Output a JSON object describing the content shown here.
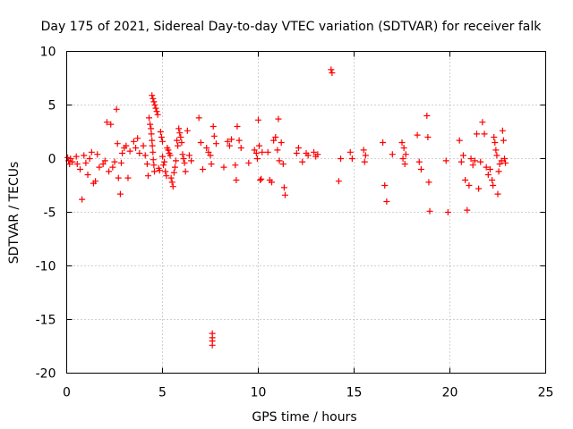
{
  "chart_data": {
    "type": "scatter",
    "title": "Day 175 of 2021, Sidereal Day-to-day VTEC variation (SDTVAR) for receiver falk",
    "xlabel": "GPS time / hours",
    "ylabel": "SDTVAR / TECUs",
    "xlim": [
      0,
      25
    ],
    "ylim": [
      -20,
      10
    ],
    "xticks": [
      0,
      5,
      10,
      15,
      20,
      25
    ],
    "yticks": [
      -20,
      -15,
      -10,
      -5,
      0,
      5,
      10
    ],
    "xtick_labels": [
      "0",
      "5",
      "10",
      "15",
      "20",
      "25"
    ],
    "ytick_labels": [
      "-20",
      "-15",
      "-10",
      "-5",
      "0",
      "5",
      "10"
    ],
    "grid": true,
    "marker": "plus",
    "color": "#ff0000",
    "series": [
      {
        "name": "SDTVAR",
        "points": [
          [
            0.05,
            0.1
          ],
          [
            0.1,
            -0.2
          ],
          [
            0.15,
            -0.5
          ],
          [
            0.2,
            0.0
          ],
          [
            0.3,
            -0.3
          ],
          [
            0.5,
            0.2
          ],
          [
            0.55,
            -0.5
          ],
          [
            0.7,
            -1.0
          ],
          [
            0.8,
            -3.8
          ],
          [
            0.9,
            0.3
          ],
          [
            1.0,
            -0.4
          ],
          [
            1.1,
            -1.5
          ],
          [
            1.2,
            0.0
          ],
          [
            1.3,
            0.6
          ],
          [
            1.4,
            -2.3
          ],
          [
            1.5,
            -2.1
          ],
          [
            1.6,
            0.4
          ],
          [
            1.7,
            -0.8
          ],
          [
            1.9,
            -0.5
          ],
          [
            2.0,
            -0.2
          ],
          [
            2.1,
            3.4
          ],
          [
            2.2,
            -1.2
          ],
          [
            2.3,
            3.2
          ],
          [
            2.4,
            -0.8
          ],
          [
            2.5,
            -0.3
          ],
          [
            2.6,
            4.6
          ],
          [
            2.65,
            1.4
          ],
          [
            2.7,
            -1.8
          ],
          [
            2.8,
            -3.3
          ],
          [
            2.85,
            -0.4
          ],
          [
            2.9,
            0.5
          ],
          [
            3.0,
            1.0
          ],
          [
            3.1,
            1.2
          ],
          [
            3.2,
            -1.8
          ],
          [
            3.3,
            0.7
          ],
          [
            3.5,
            1.6
          ],
          [
            3.6,
            1.0
          ],
          [
            3.7,
            1.9
          ],
          [
            3.8,
            0.5
          ],
          [
            4.0,
            1.2
          ],
          [
            4.1,
            0.3
          ],
          [
            4.2,
            -0.5
          ],
          [
            4.25,
            -1.6
          ],
          [
            4.3,
            3.8
          ],
          [
            4.35,
            3.2
          ],
          [
            4.4,
            2.8
          ],
          [
            4.42,
            2.3
          ],
          [
            4.45,
            1.7
          ],
          [
            4.47,
            1.2
          ],
          [
            4.5,
            0.6
          ],
          [
            4.52,
            -0.1
          ],
          [
            4.55,
            -0.6
          ],
          [
            4.58,
            -1.2
          ],
          [
            4.45,
            5.9
          ],
          [
            4.5,
            5.6
          ],
          [
            4.55,
            5.3
          ],
          [
            4.6,
            5.0
          ],
          [
            4.65,
            4.7
          ],
          [
            4.7,
            4.4
          ],
          [
            4.75,
            4.1
          ],
          [
            4.8,
            -0.9
          ],
          [
            4.85,
            -1.1
          ],
          [
            4.9,
            2.5
          ],
          [
            4.95,
            2.0
          ],
          [
            5.0,
            1.6
          ],
          [
            5.0,
            0.2
          ],
          [
            5.05,
            -0.6
          ],
          [
            5.1,
            -0.3
          ],
          [
            5.15,
            -1.2
          ],
          [
            5.2,
            -1.6
          ],
          [
            5.25,
            1.0
          ],
          [
            5.3,
            0.8
          ],
          [
            5.35,
            0.5
          ],
          [
            5.4,
            0.3
          ],
          [
            5.45,
            -1.8
          ],
          [
            5.5,
            -2.2
          ],
          [
            5.55,
            -2.6
          ],
          [
            5.6,
            -1.3
          ],
          [
            5.65,
            -0.8
          ],
          [
            5.7,
            -0.2
          ],
          [
            5.75,
            1.7
          ],
          [
            5.8,
            1.2
          ],
          [
            5.85,
            2.8
          ],
          [
            5.9,
            2.4
          ],
          [
            5.95,
            2.0
          ],
          [
            6.0,
            1.5
          ],
          [
            6.05,
            0.4
          ],
          [
            6.1,
            0.0
          ],
          [
            6.15,
            -0.4
          ],
          [
            6.2,
            -1.2
          ],
          [
            6.3,
            2.6
          ],
          [
            6.4,
            0.3
          ],
          [
            6.5,
            -0.2
          ],
          [
            6.9,
            3.8
          ],
          [
            7.0,
            1.5
          ],
          [
            7.1,
            -1.0
          ],
          [
            7.3,
            1.0
          ],
          [
            7.4,
            0.6
          ],
          [
            7.5,
            0.3
          ],
          [
            7.55,
            -0.5
          ],
          [
            7.6,
            -16.3
          ],
          [
            7.6,
            -16.7
          ],
          [
            7.6,
            -17.0
          ],
          [
            7.6,
            -17.4
          ],
          [
            7.65,
            3.0
          ],
          [
            7.7,
            2.1
          ],
          [
            7.8,
            1.4
          ],
          [
            8.2,
            -0.8
          ],
          [
            8.4,
            1.6
          ],
          [
            8.5,
            1.2
          ],
          [
            8.6,
            1.8
          ],
          [
            8.8,
            -0.6
          ],
          [
            8.85,
            -2.0
          ],
          [
            8.9,
            3.0
          ],
          [
            9.0,
            1.7
          ],
          [
            9.1,
            1.0
          ],
          [
            9.5,
            -0.4
          ],
          [
            9.8,
            0.8
          ],
          [
            9.9,
            0.5
          ],
          [
            9.95,
            0.0
          ],
          [
            10.0,
            3.6
          ],
          [
            10.05,
            1.2
          ],
          [
            10.1,
            -2.0
          ],
          [
            10.15,
            -1.9
          ],
          [
            10.2,
            0.6
          ],
          [
            10.5,
            0.6
          ],
          [
            10.6,
            -2.0
          ],
          [
            10.7,
            -2.2
          ],
          [
            10.8,
            1.7
          ],
          [
            10.9,
            2.0
          ],
          [
            11.0,
            0.8
          ],
          [
            11.05,
            3.7
          ],
          [
            11.1,
            -0.2
          ],
          [
            11.2,
            1.5
          ],
          [
            11.3,
            -0.5
          ],
          [
            11.35,
            -2.7
          ],
          [
            11.4,
            -3.4
          ],
          [
            12.0,
            0.5
          ],
          [
            12.1,
            1.0
          ],
          [
            12.3,
            -0.3
          ],
          [
            12.5,
            0.5
          ],
          [
            12.6,
            0.3
          ],
          [
            12.9,
            0.6
          ],
          [
            13.0,
            0.2
          ],
          [
            13.1,
            0.4
          ],
          [
            13.8,
            8.3
          ],
          [
            13.85,
            8.0
          ],
          [
            14.2,
            -2.1
          ],
          [
            14.3,
            0.0
          ],
          [
            14.8,
            0.6
          ],
          [
            14.9,
            0.0
          ],
          [
            15.5,
            0.8
          ],
          [
            15.55,
            -0.3
          ],
          [
            15.6,
            0.3
          ],
          [
            16.5,
            1.5
          ],
          [
            16.6,
            -2.5
          ],
          [
            16.7,
            -4.0
          ],
          [
            17.0,
            0.4
          ],
          [
            17.5,
            1.5
          ],
          [
            17.55,
            0.0
          ],
          [
            17.6,
            1.0
          ],
          [
            17.65,
            -0.5
          ],
          [
            17.7,
            0.4
          ],
          [
            18.3,
            2.2
          ],
          [
            18.4,
            -0.3
          ],
          [
            18.5,
            -1.0
          ],
          [
            18.8,
            4.0
          ],
          [
            18.85,
            2.0
          ],
          [
            18.9,
            -2.2
          ],
          [
            18.95,
            -4.9
          ],
          [
            19.8,
            -0.2
          ],
          [
            19.9,
            -5.0
          ],
          [
            20.5,
            1.7
          ],
          [
            20.6,
            -0.3
          ],
          [
            20.7,
            0.3
          ],
          [
            20.8,
            -2.0
          ],
          [
            20.9,
            -4.8
          ],
          [
            21.0,
            -2.5
          ],
          [
            21.1,
            0.0
          ],
          [
            21.2,
            -0.6
          ],
          [
            21.3,
            -0.2
          ],
          [
            21.4,
            2.3
          ],
          [
            21.5,
            -2.8
          ],
          [
            21.6,
            -0.3
          ],
          [
            21.7,
            3.4
          ],
          [
            21.8,
            2.3
          ],
          [
            21.9,
            -0.8
          ],
          [
            22.0,
            -1.5
          ],
          [
            22.1,
            -1.0
          ],
          [
            22.2,
            -2.0
          ],
          [
            22.25,
            -2.5
          ],
          [
            22.3,
            2.0
          ],
          [
            22.35,
            1.5
          ],
          [
            22.4,
            0.8
          ],
          [
            22.45,
            0.3
          ],
          [
            22.5,
            -3.3
          ],
          [
            22.55,
            -1.2
          ],
          [
            22.6,
            -0.5
          ],
          [
            22.7,
            -0.2
          ],
          [
            22.75,
            2.6
          ],
          [
            22.8,
            1.7
          ],
          [
            22.85,
            0.0
          ],
          [
            22.9,
            -0.4
          ]
        ]
      }
    ]
  }
}
